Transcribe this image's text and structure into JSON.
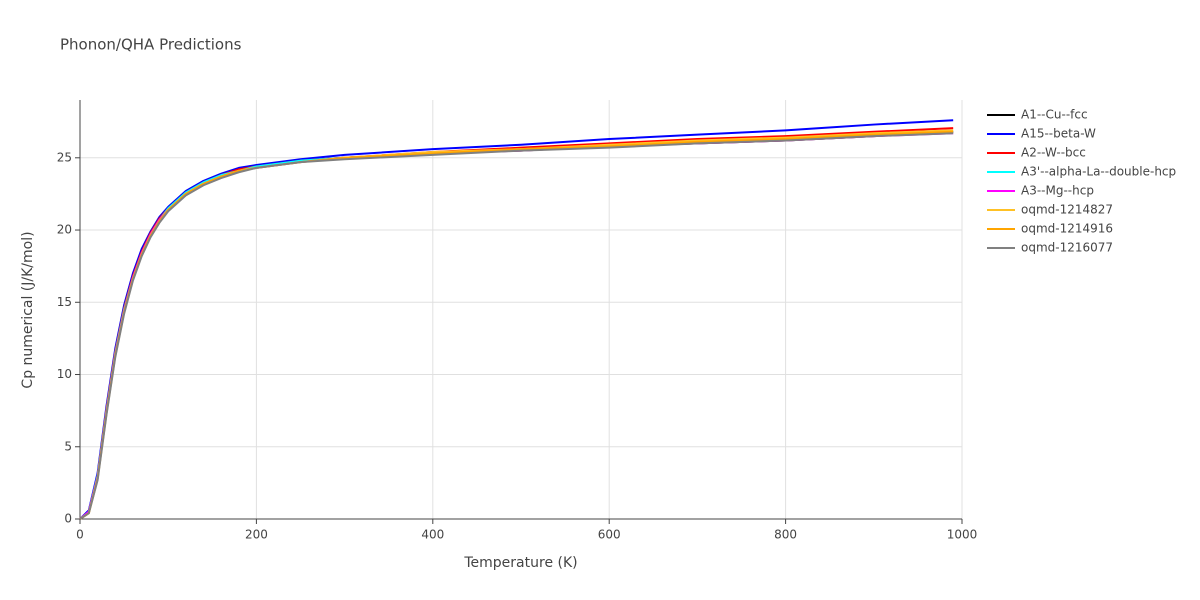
{
  "chart_data": {
    "type": "line",
    "title": "Phonon/QHA Predictions",
    "x_label": "Temperature (K)",
    "y_label": "Cp numerical (J/K/mol)",
    "x": [
      0,
      10,
      20,
      30,
      40,
      50,
      60,
      70,
      80,
      90,
      100,
      120,
      140,
      160,
      180,
      200,
      250,
      300,
      400,
      500,
      600,
      700,
      800,
      900,
      990
    ],
    "series": [
      {
        "name": "A1--Cu--fcc",
        "color": "#000000",
        "values": [
          0,
          0.5,
          3.0,
          7.6,
          11.6,
          14.6,
          16.8,
          18.5,
          19.8,
          20.8,
          21.5,
          22.6,
          23.3,
          23.8,
          24.2,
          24.4,
          24.8,
          25.0,
          25.3,
          25.5,
          25.8,
          26.0,
          26.2,
          26.5,
          26.8
        ]
      },
      {
        "name": "A15--beta-W",
        "color": "#0000ff",
        "values": [
          0,
          0.6,
          3.2,
          7.8,
          11.8,
          14.8,
          17.0,
          18.7,
          19.9,
          20.9,
          21.6,
          22.7,
          23.4,
          23.9,
          24.3,
          24.5,
          24.9,
          25.2,
          25.6,
          25.9,
          26.3,
          26.6,
          26.9,
          27.3,
          27.6
        ]
      },
      {
        "name": "A2--W--bcc",
        "color": "#ff0000",
        "values": [
          0,
          0.5,
          3.0,
          7.6,
          11.6,
          14.6,
          16.8,
          18.5,
          19.8,
          20.8,
          21.5,
          22.6,
          23.3,
          23.8,
          24.2,
          24.4,
          24.8,
          25.0,
          25.4,
          25.7,
          26.0,
          26.3,
          26.5,
          26.8,
          27.05
        ]
      },
      {
        "name": "A3'--alpha-La--double-hcp",
        "color": "#00ffff",
        "values": [
          0,
          0.5,
          3.0,
          7.5,
          11.5,
          14.5,
          16.7,
          18.4,
          19.7,
          20.7,
          21.5,
          22.6,
          23.3,
          23.8,
          24.1,
          24.4,
          24.8,
          25.0,
          25.3,
          25.6,
          25.8,
          26.1,
          26.3,
          26.6,
          26.8
        ]
      },
      {
        "name": "A3--Mg--hcp",
        "color": "#ff00ff",
        "values": [
          0,
          0.5,
          2.9,
          7.4,
          11.4,
          14.4,
          16.7,
          18.4,
          19.7,
          20.7,
          21.4,
          22.5,
          23.2,
          23.7,
          24.1,
          24.3,
          24.7,
          25.0,
          25.3,
          25.5,
          25.8,
          26.0,
          26.2,
          26.5,
          26.7
        ]
      },
      {
        "name": "oqmd-1214827",
        "color": "#ffc125",
        "values": [
          0,
          0.4,
          2.8,
          7.3,
          11.3,
          14.3,
          16.6,
          18.3,
          19.6,
          20.6,
          21.4,
          22.5,
          23.2,
          23.7,
          24.1,
          24.3,
          24.7,
          25.0,
          25.4,
          25.6,
          25.9,
          26.2,
          26.4,
          26.7,
          26.9
        ]
      },
      {
        "name": "oqmd-1214916",
        "color": "#ffa500",
        "values": [
          0,
          0.4,
          2.8,
          7.3,
          11.3,
          14.3,
          16.6,
          18.3,
          19.6,
          20.6,
          21.4,
          22.5,
          23.2,
          23.7,
          24.1,
          24.3,
          24.7,
          25.0,
          25.3,
          25.6,
          25.8,
          26.1,
          26.3,
          26.6,
          26.8
        ]
      },
      {
        "name": "oqmd-1216077",
        "color": "#808080",
        "values": [
          0,
          0.4,
          2.7,
          7.2,
          11.2,
          14.2,
          16.5,
          18.2,
          19.5,
          20.5,
          21.3,
          22.4,
          23.1,
          23.6,
          24.0,
          24.3,
          24.7,
          24.9,
          25.2,
          25.5,
          25.7,
          26.0,
          26.2,
          26.5,
          26.7
        ]
      }
    ],
    "xlim": [
      0,
      1000
    ],
    "ylim": [
      0,
      29
    ],
    "xticks": [
      0,
      200,
      400,
      600,
      800,
      1000
    ],
    "yticks": [
      0,
      5,
      10,
      15,
      20,
      25
    ],
    "grid": true,
    "legend": "right"
  }
}
